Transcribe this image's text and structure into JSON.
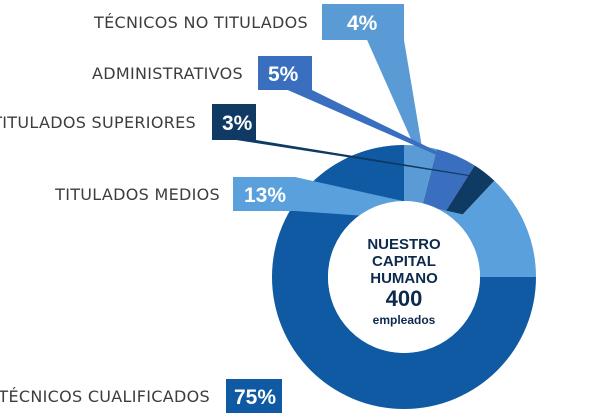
{
  "chart_data": {
    "type": "pie",
    "categories": [
      "TÉCNICOS NO TITULADOS",
      "ADMINISTRATIVOS",
      "TITULADOS SUPERIORES",
      "TITULADOS MEDIOS",
      "TÉCNICOS CUALIFICADOS"
    ],
    "values": [
      4,
      5,
      3,
      13,
      75
    ],
    "value_labels": [
      "4%",
      "5%",
      "3%",
      "13%",
      "75%"
    ],
    "colors": [
      "#5b9bd5",
      "#3a6fc0",
      "#0f3a63",
      "#5aa0dc",
      "#0f5aa3"
    ],
    "center_label": {
      "lines": [
        "NUESTRO",
        "CAPITAL",
        "HUMANO"
      ],
      "count": "400",
      "unit": "empleados"
    }
  }
}
